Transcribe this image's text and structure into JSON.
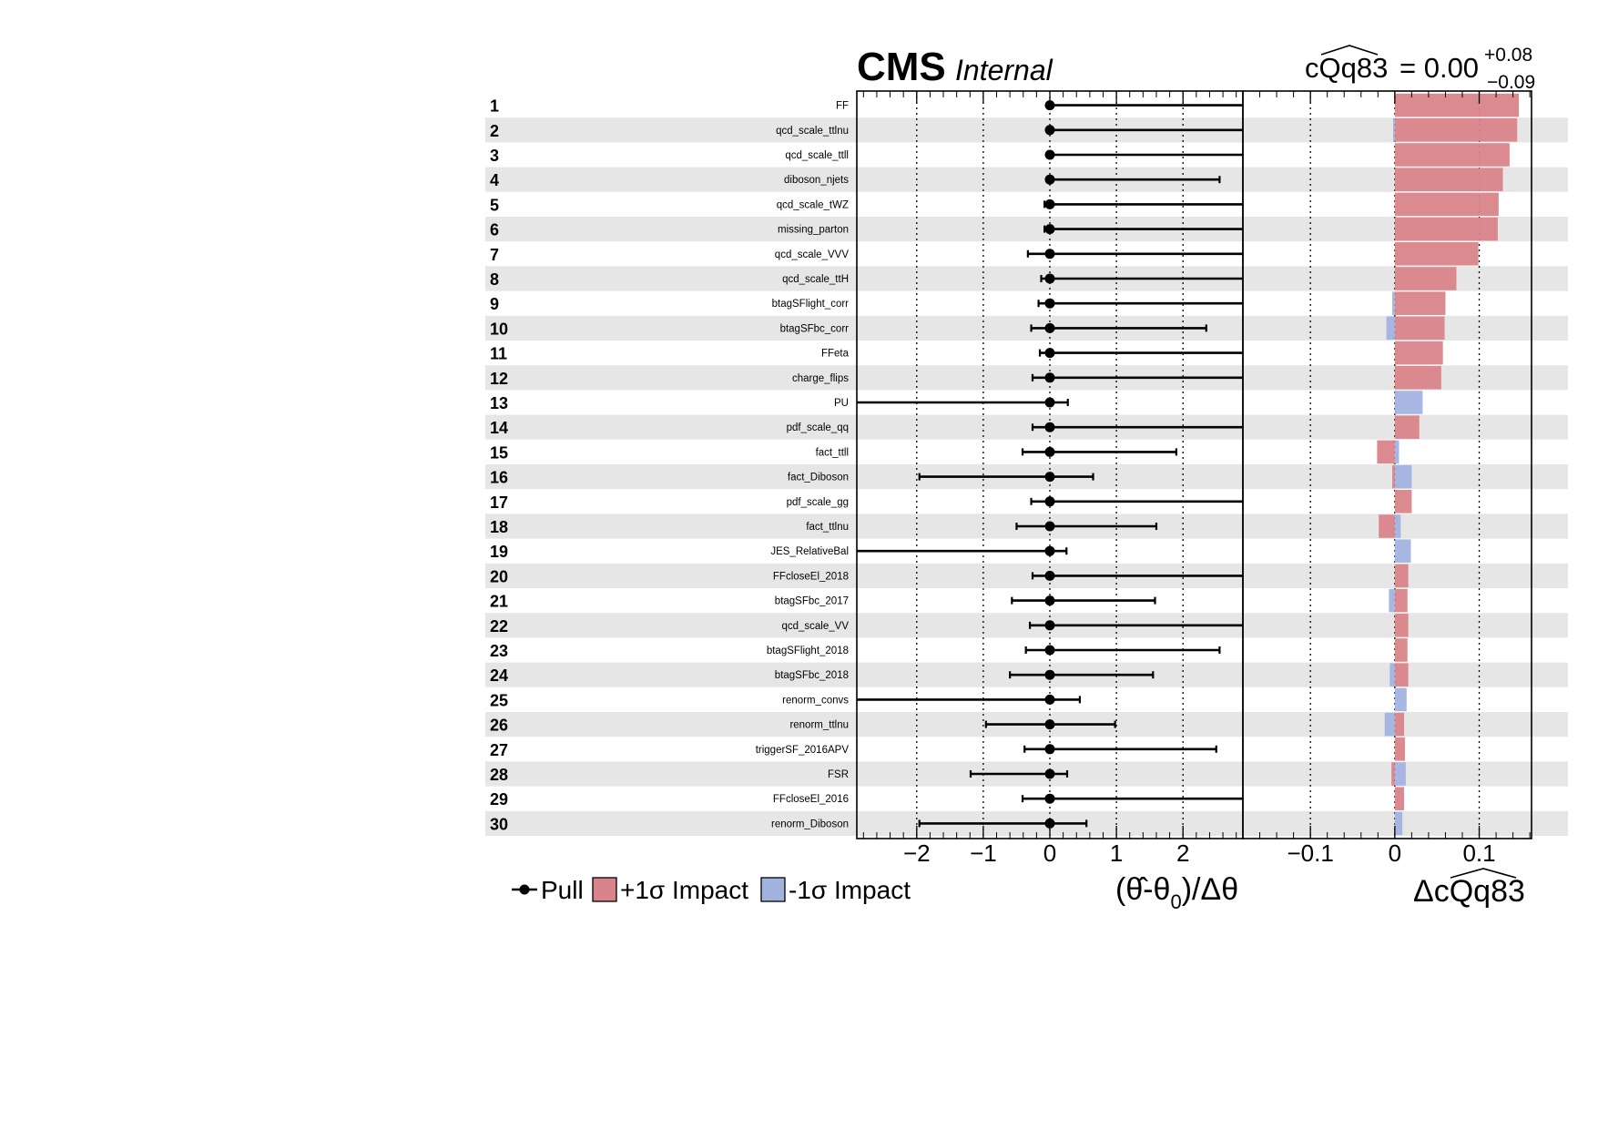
{
  "header": {
    "experiment": "CMS",
    "status": "Internal",
    "poi_name": "cQq83",
    "poi_value": "= 0.00",
    "poi_err_up": "+0.08",
    "poi_err_down": "−0.09"
  },
  "legend": {
    "pull": "Pull",
    "impact_up": "+1σ Impact",
    "impact_down": "-1σ Impact"
  },
  "colors": {
    "impact_up": "#d9848a",
    "impact_down": "#a3b3df",
    "row_band": "#e6e6e6",
    "marker": "#000000"
  },
  "chart_data": [
    {
      "type": "scatter",
      "name": "pulls",
      "xlabel_parts": [
        "(θ̂-θ",
        "0",
        ")/Δθ"
      ],
      "xlim": [
        -2.9,
        2.9
      ],
      "xticks": [
        -2,
        -1,
        0,
        1,
        2
      ],
      "xtick_labels": [
        "−2",
        "−1",
        "0",
        "1",
        "2"
      ],
      "grid": "dotted at ticks",
      "points": [
        {
          "rank": 1,
          "param": "FF",
          "pull": 0,
          "err_lo": 0.0,
          "err_hi": 2.9
        },
        {
          "rank": 2,
          "param": "qcd_scale_ttlnu",
          "pull": 0,
          "err_lo": 0.0,
          "err_hi": 2.9
        },
        {
          "rank": 3,
          "param": "qcd_scale_ttll",
          "pull": 0,
          "err_lo": 0.0,
          "err_hi": 2.9
        },
        {
          "rank": 4,
          "param": "diboson_njets",
          "pull": 0,
          "err_lo": 0.0,
          "err_hi": 2.55
        },
        {
          "rank": 5,
          "param": "qcd_scale_tWZ",
          "pull": 0,
          "err_lo": 0.08,
          "err_hi": 2.9
        },
        {
          "rank": 6,
          "param": "missing_parton",
          "pull": 0,
          "err_lo": 0.08,
          "err_hi": 2.9
        },
        {
          "rank": 7,
          "param": "qcd_scale_VVV",
          "pull": 0,
          "err_lo": 0.33,
          "err_hi": 2.9
        },
        {
          "rank": 8,
          "param": "qcd_scale_ttH",
          "pull": 0,
          "err_lo": 0.13,
          "err_hi": 2.9
        },
        {
          "rank": 9,
          "param": "btagSFlight_corr",
          "pull": 0,
          "err_lo": 0.17,
          "err_hi": 2.9
        },
        {
          "rank": 10,
          "param": "btagSFbc_corr",
          "pull": 0,
          "err_lo": 0.28,
          "err_hi": 2.35
        },
        {
          "rank": 11,
          "param": "FFeta",
          "pull": 0,
          "err_lo": 0.15,
          "err_hi": 2.9
        },
        {
          "rank": 12,
          "param": "charge_flips",
          "pull": 0,
          "err_lo": 0.26,
          "err_hi": 2.9
        },
        {
          "rank": 13,
          "param": "PU",
          "pull": 0,
          "err_lo": 2.9,
          "err_hi": 0.27
        },
        {
          "rank": 14,
          "param": "pdf_scale_qq",
          "pull": 0,
          "err_lo": 0.26,
          "err_hi": 2.9
        },
        {
          "rank": 15,
          "param": "fact_ttll",
          "pull": 0,
          "err_lo": 0.41,
          "err_hi": 1.9
        },
        {
          "rank": 16,
          "param": "fact_Diboson",
          "pull": 0,
          "err_lo": 1.96,
          "err_hi": 0.65
        },
        {
          "rank": 17,
          "param": "pdf_scale_gg",
          "pull": 0,
          "err_lo": 0.28,
          "err_hi": 2.9
        },
        {
          "rank": 18,
          "param": "fact_ttlnu",
          "pull": 0,
          "err_lo": 0.5,
          "err_hi": 1.6
        },
        {
          "rank": 19,
          "param": "JES_RelativeBal",
          "pull": 0,
          "err_lo": 2.9,
          "err_hi": 0.25
        },
        {
          "rank": 20,
          "param": "FFcloseEl_2018",
          "pull": 0,
          "err_lo": 0.26,
          "err_hi": 2.9
        },
        {
          "rank": 21,
          "param": "btagSFbc_2017",
          "pull": 0,
          "err_lo": 0.57,
          "err_hi": 1.58
        },
        {
          "rank": 22,
          "param": "qcd_scale_VV",
          "pull": 0,
          "err_lo": 0.3,
          "err_hi": 2.9
        },
        {
          "rank": 23,
          "param": "btagSFlight_2018",
          "pull": 0,
          "err_lo": 0.36,
          "err_hi": 2.55
        },
        {
          "rank": 24,
          "param": "btagSFbc_2018",
          "pull": 0,
          "err_lo": 0.6,
          "err_hi": 1.55
        },
        {
          "rank": 25,
          "param": "renorm_convs",
          "pull": 0,
          "err_lo": 2.9,
          "err_hi": 0.45
        },
        {
          "rank": 26,
          "param": "renorm_ttlnu",
          "pull": 0,
          "err_lo": 0.96,
          "err_hi": 0.98
        },
        {
          "rank": 27,
          "param": "triggerSF_2016APV",
          "pull": 0,
          "err_lo": 0.38,
          "err_hi": 2.5
        },
        {
          "rank": 28,
          "param": "FSR",
          "pull": 0,
          "err_lo": 1.19,
          "err_hi": 0.26
        },
        {
          "rank": 29,
          "param": "FFcloseEl_2016",
          "pull": 0,
          "err_lo": 0.41,
          "err_hi": 2.9
        },
        {
          "rank": 30,
          "param": "renorm_Diboson",
          "pull": 0,
          "err_lo": 1.96,
          "err_hi": 0.55
        }
      ]
    },
    {
      "type": "bar",
      "name": "impacts",
      "xlabel": "ΔcQq83",
      "xlim": [
        -0.18,
        0.162
      ],
      "xticks": [
        -0.1,
        0,
        0.1
      ],
      "xtick_labels": [
        "−0.1",
        "0",
        "0.1"
      ],
      "grid": "dotted at ticks",
      "categories": [
        "FF",
        "qcd_scale_ttlnu",
        "qcd_scale_ttll",
        "diboson_njets",
        "qcd_scale_tWZ",
        "missing_parton",
        "qcd_scale_VVV",
        "qcd_scale_ttH",
        "btagSFlight_corr",
        "btagSFbc_corr",
        "FFeta",
        "charge_flips",
        "PU",
        "pdf_scale_qq",
        "fact_ttll",
        "fact_Diboson",
        "pdf_scale_gg",
        "fact_ttlnu",
        "JES_RelativeBal",
        "FFcloseEl_2018",
        "btagSFbc_2017",
        "qcd_scale_VV",
        "btagSFlight_2018",
        "btagSFbc_2018",
        "renorm_convs",
        "renorm_ttlnu",
        "triggerSF_2016APV",
        "FSR",
        "FFcloseEl_2016",
        "renorm_Diboson"
      ],
      "series": [
        {
          "name": "+1σ Impact",
          "values": [
            0.147,
            0.145,
            0.136,
            0.128,
            0.123,
            0.122,
            0.099,
            0.073,
            0.06,
            0.059,
            0.057,
            0.055,
            0.002,
            0.029,
            -0.021,
            -0.003,
            0.02,
            -0.019,
            0.0,
            0.016,
            0.015,
            0.016,
            0.015,
            0.016,
            0.0,
            0.011,
            0.012,
            -0.004,
            0.011,
            0.0
          ]
        },
        {
          "name": "-1σ Impact",
          "values": [
            0.0,
            -0.002,
            0.0,
            0.0,
            0.0,
            0.0,
            0.0,
            0.0,
            -0.003,
            -0.01,
            0.0,
            0.0,
            0.033,
            0.0,
            0.005,
            0.02,
            0.0,
            0.007,
            0.019,
            0.0,
            -0.007,
            0.0,
            0.0,
            -0.006,
            0.014,
            -0.012,
            0.0,
            0.013,
            0.0,
            0.009
          ]
        }
      ]
    }
  ]
}
